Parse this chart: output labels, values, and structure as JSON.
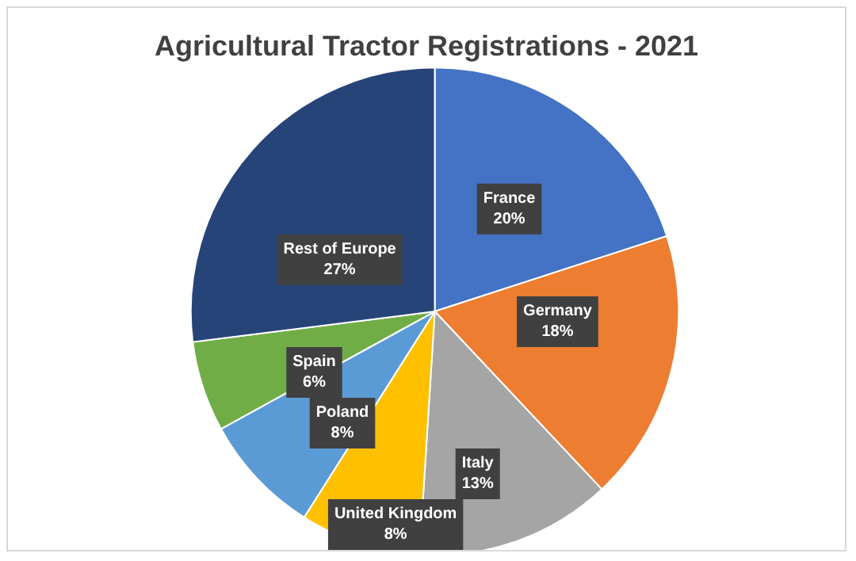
{
  "chart_data": {
    "type": "pie",
    "title": "Agricultural Tractor Registrations - 2021",
    "categories": [
      "France",
      "Germany",
      "Italy",
      "United Kingdom",
      "Poland",
      "Spain",
      "Rest of Europe"
    ],
    "values": [
      20,
      18,
      13,
      8,
      8,
      6,
      27
    ],
    "value_labels": [
      "20%",
      "18%",
      "13%",
      "8%",
      "8%",
      "6%",
      "27%"
    ],
    "colors": [
      "#4472c4",
      "#ed7d31",
      "#a5a5a5",
      "#ffc000",
      "#5b9bd5",
      "#70ad47",
      "#264478"
    ],
    "legend": false
  }
}
